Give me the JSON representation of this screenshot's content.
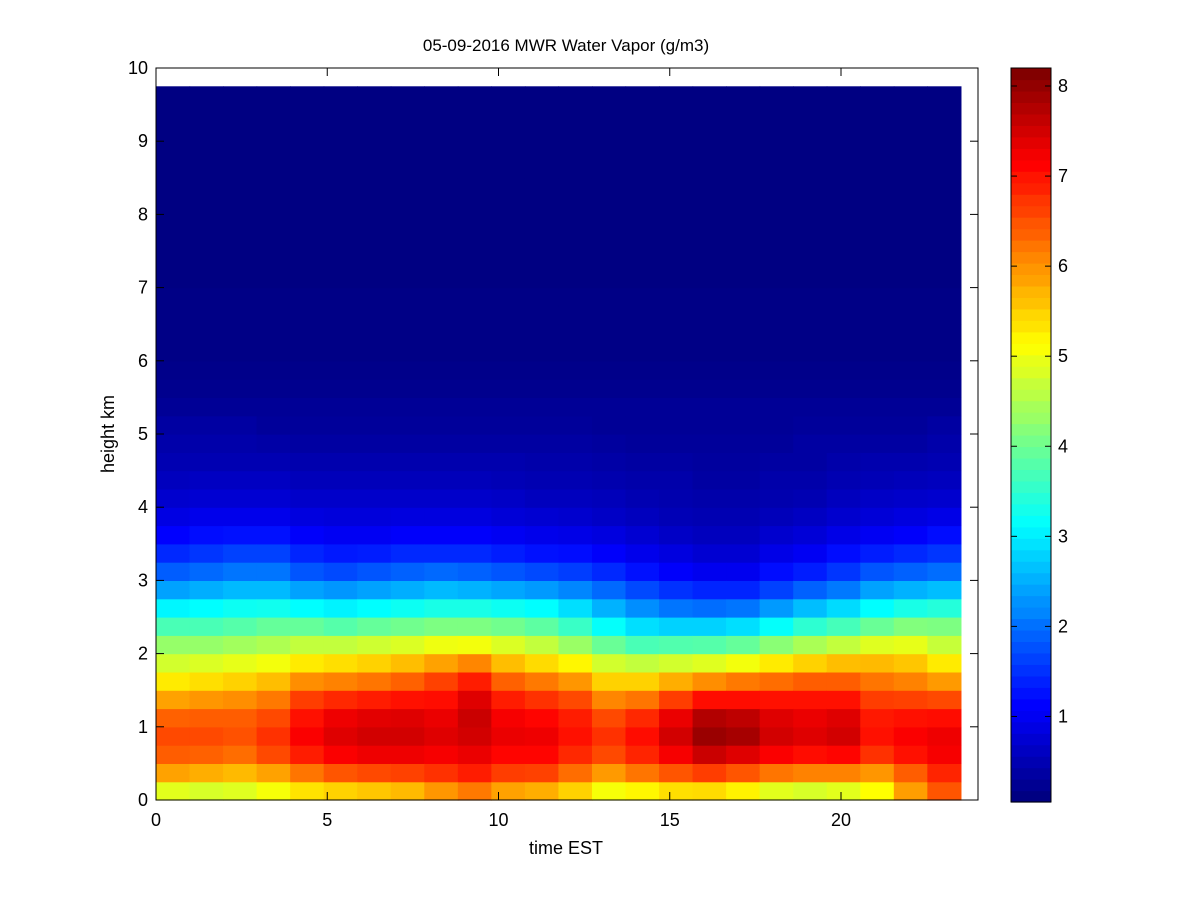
{
  "chart_data": {
    "type": "heatmap",
    "title": "05-09-2016 MWR Water Vapor (g/m3)",
    "xlabel": "time EST",
    "ylabel": "height km",
    "xlim": [
      0,
      24
    ],
    "ylim": [
      0,
      10
    ],
    "x_ticks": [
      "0",
      "5",
      "10",
      "15",
      "20"
    ],
    "y_ticks": [
      "0",
      "1",
      "2",
      "3",
      "4",
      "5",
      "6",
      "7",
      "8",
      "9",
      "10"
    ],
    "colorbar": {
      "colormap": "jet",
      "range": [
        0.05,
        8.2
      ],
      "ticks": [
        "1",
        "2",
        "3",
        "4",
        "5",
        "6",
        "7",
        "8"
      ]
    },
    "x_hours": [
      0,
      1,
      2,
      3,
      4,
      5,
      6,
      7,
      8,
      9,
      10,
      11,
      12,
      13,
      14,
      15,
      16,
      17,
      18,
      19,
      20,
      21,
      22,
      23
    ],
    "x_extent": [
      0,
      23.5
    ],
    "y_extent": [
      0,
      9.75
    ],
    "profile_heights_km": [
      0.0,
      0.1,
      0.25,
      0.5,
      0.75,
      1.0,
      1.25,
      1.5,
      1.75,
      2.0,
      2.25,
      2.5,
      2.75,
      3.0,
      3.25,
      3.5,
      3.75,
      4.0,
      4.5,
      5.0,
      5.5,
      6.0,
      7.0,
      8.0,
      9.0,
      9.75
    ],
    "profiles": [
      [
        4.5,
        4.8,
        5.5,
        6.3,
        6.6,
        6.6,
        6.2,
        5.6,
        5.0,
        4.6,
        4.0,
        3.4,
        2.7,
        2.0,
        1.6,
        1.2,
        0.95,
        0.75,
        0.5,
        0.35,
        0.2,
        0.1,
        0.08,
        0.05,
        0.05,
        0.05
      ],
      [
        4.5,
        4.7,
        5.4,
        6.2,
        6.6,
        6.6,
        6.3,
        5.7,
        5.1,
        4.6,
        4.0,
        3.4,
        2.8,
        2.1,
        1.7,
        1.3,
        1.0,
        0.8,
        0.5,
        0.35,
        0.2,
        0.1,
        0.08,
        0.05,
        0.05,
        0.05
      ],
      [
        4.6,
        4.8,
        5.3,
        6.1,
        6.5,
        6.6,
        6.3,
        5.8,
        5.2,
        4.7,
        4.1,
        3.5,
        2.9,
        2.2,
        1.8,
        1.4,
        1.0,
        0.8,
        0.5,
        0.35,
        0.2,
        0.1,
        0.08,
        0.05,
        0.05,
        0.05
      ],
      [
        4.8,
        5.0,
        5.4,
        6.4,
        6.8,
        6.8,
        6.4,
        6.0,
        5.3,
        4.8,
        4.2,
        3.6,
        2.9,
        2.2,
        1.8,
        1.4,
        1.0,
        0.8,
        0.5,
        0.3,
        0.2,
        0.1,
        0.08,
        0.05,
        0.05,
        0.05
      ],
      [
        5.0,
        5.3,
        5.8,
        6.7,
        7.2,
        7.2,
        6.9,
        6.5,
        5.6,
        5.0,
        4.3,
        3.5,
        2.7,
        2.0,
        1.5,
        1.2,
        0.9,
        0.7,
        0.45,
        0.3,
        0.2,
        0.1,
        0.08,
        0.05,
        0.05,
        0.05
      ],
      [
        5.1,
        5.4,
        6.0,
        7.0,
        7.4,
        7.5,
        7.1,
        6.6,
        5.7,
        5.1,
        4.2,
        3.4,
        2.6,
        1.9,
        1.4,
        1.1,
        0.85,
        0.7,
        0.45,
        0.3,
        0.2,
        0.1,
        0.08,
        0.05,
        0.05,
        0.05
      ],
      [
        5.2,
        5.5,
        6.1,
        7.1,
        7.5,
        7.6,
        7.2,
        6.7,
        5.8,
        5.2,
        4.3,
        3.5,
        2.7,
        2.0,
        1.5,
        1.1,
        0.85,
        0.7,
        0.45,
        0.3,
        0.2,
        0.1,
        0.08,
        0.05,
        0.05,
        0.05
      ],
      [
        5.3,
        5.6,
        6.2,
        7.1,
        7.5,
        7.6,
        7.3,
        6.8,
        6.0,
        5.3,
        4.4,
        3.6,
        2.8,
        2.1,
        1.6,
        1.2,
        0.9,
        0.7,
        0.45,
        0.3,
        0.2,
        0.1,
        0.08,
        0.05,
        0.05,
        0.05
      ],
      [
        5.5,
        5.9,
        6.5,
        7.1,
        7.4,
        7.5,
        7.2,
        7.0,
        6.3,
        5.5,
        4.5,
        3.7,
        2.9,
        2.2,
        1.6,
        1.2,
        0.9,
        0.7,
        0.45,
        0.3,
        0.2,
        0.1,
        0.08,
        0.05,
        0.05,
        0.05
      ],
      [
        5.6,
        6.1,
        6.7,
        7.2,
        7.5,
        7.6,
        7.6,
        7.3,
        6.6,
        5.6,
        4.5,
        3.7,
        2.9,
        2.1,
        1.6,
        1.2,
        0.9,
        0.7,
        0.45,
        0.3,
        0.2,
        0.1,
        0.08,
        0.05,
        0.05,
        0.05
      ],
      [
        5.3,
        5.8,
        6.4,
        7.0,
        7.3,
        7.4,
        7.1,
        6.8,
        6.0,
        5.3,
        4.4,
        3.6,
        2.8,
        2.0,
        1.5,
        1.1,
        0.85,
        0.65,
        0.45,
        0.3,
        0.2,
        0.1,
        0.08,
        0.05,
        0.05,
        0.05
      ],
      [
        5.2,
        5.7,
        6.3,
        7.0,
        7.3,
        7.3,
        7.0,
        6.6,
        5.8,
        5.1,
        4.2,
        3.5,
        2.7,
        1.9,
        1.4,
        1.0,
        0.8,
        0.6,
        0.4,
        0.3,
        0.2,
        0.1,
        0.08,
        0.05,
        0.05,
        0.05
      ],
      [
        5.0,
        5.4,
        5.9,
        6.7,
        7.0,
        7.1,
        6.8,
        6.4,
        5.6,
        4.8,
        3.9,
        3.2,
        2.5,
        1.8,
        1.3,
        1.0,
        0.75,
        0.6,
        0.4,
        0.3,
        0.2,
        0.1,
        0.08,
        0.05,
        0.05,
        0.05
      ],
      [
        4.8,
        5.0,
        5.5,
        6.4,
        6.8,
        6.8,
        6.4,
        5.8,
        5.2,
        4.4,
        3.5,
        2.8,
        2.2,
        1.6,
        1.2,
        0.9,
        0.7,
        0.55,
        0.4,
        0.25,
        0.2,
        0.1,
        0.08,
        0.05,
        0.05,
        0.05
      ],
      [
        4.9,
        5.1,
        5.8,
        6.7,
        7.1,
        7.1,
        6.6,
        5.9,
        5.1,
        4.2,
        3.2,
        2.5,
        1.9,
        1.4,
        1.0,
        0.8,
        0.6,
        0.5,
        0.35,
        0.25,
        0.2,
        0.1,
        0.08,
        0.05,
        0.05,
        0.05
      ],
      [
        5.0,
        5.3,
        6.0,
        7.0,
        7.5,
        7.6,
        7.1,
        6.3,
        5.3,
        4.3,
        3.2,
        2.3,
        1.7,
        1.2,
        0.9,
        0.7,
        0.55,
        0.45,
        0.35,
        0.25,
        0.2,
        0.1,
        0.08,
        0.05,
        0.05,
        0.05
      ],
      [
        4.9,
        5.3,
        6.1,
        7.3,
        7.9,
        8.1,
        7.5,
        6.7,
        5.4,
        4.4,
        3.2,
        2.3,
        1.6,
        1.1,
        0.8,
        0.6,
        0.5,
        0.4,
        0.3,
        0.25,
        0.2,
        0.1,
        0.08,
        0.05,
        0.05,
        0.05
      ],
      [
        4.7,
        5.1,
        5.9,
        7.1,
        7.8,
        8.0,
        7.4,
        6.8,
        5.6,
        4.5,
        3.3,
        2.4,
        1.6,
        1.1,
        0.8,
        0.6,
        0.5,
        0.4,
        0.3,
        0.25,
        0.2,
        0.1,
        0.08,
        0.05,
        0.05,
        0.05
      ],
      [
        4.5,
        4.8,
        5.6,
        6.9,
        7.5,
        7.6,
        7.3,
        6.8,
        5.8,
        4.8,
        3.6,
        2.7,
        1.9,
        1.3,
        1.0,
        0.75,
        0.6,
        0.45,
        0.35,
        0.25,
        0.2,
        0.1,
        0.08,
        0.05,
        0.05,
        0.05
      ],
      [
        4.4,
        4.7,
        5.5,
        6.8,
        7.4,
        7.5,
        7.2,
        6.9,
        6.0,
        5.0,
        3.9,
        3.0,
        2.2,
        1.5,
        1.1,
        0.85,
        0.65,
        0.5,
        0.35,
        0.3,
        0.2,
        0.1,
        0.08,
        0.05,
        0.05,
        0.05
      ],
      [
        4.5,
        4.8,
        5.5,
        6.8,
        7.5,
        7.6,
        7.3,
        6.8,
        6.1,
        5.2,
        4.1,
        3.2,
        2.4,
        1.7,
        1.3,
        1.0,
        0.75,
        0.6,
        0.4,
        0.3,
        0.2,
        0.1,
        0.08,
        0.05,
        0.05,
        0.05
      ],
      [
        5.0,
        5.1,
        5.4,
        6.6,
        7.0,
        7.1,
        6.9,
        6.5,
        6.0,
        5.4,
        4.4,
        3.5,
        2.7,
        2.0,
        1.5,
        1.1,
        0.85,
        0.65,
        0.45,
        0.3,
        0.2,
        0.1,
        0.08,
        0.05,
        0.05,
        0.05
      ],
      [
        5.8,
        5.9,
        6.0,
        6.9,
        7.2,
        7.2,
        6.9,
        6.4,
        5.9,
        5.3,
        4.6,
        3.7,
        2.9,
        2.1,
        1.6,
        1.2,
        0.9,
        0.7,
        0.45,
        0.3,
        0.2,
        0.1,
        0.08,
        0.05,
        0.05,
        0.05
      ],
      [
        6.4,
        6.5,
        6.6,
        7.2,
        7.3,
        7.3,
        6.9,
        6.3,
        5.6,
        5.0,
        4.4,
        3.8,
        3.0,
        2.2,
        1.7,
        1.3,
        1.0,
        0.75,
        0.5,
        0.35,
        0.2,
        0.1,
        0.08,
        0.05,
        0.05,
        0.05
      ]
    ]
  }
}
